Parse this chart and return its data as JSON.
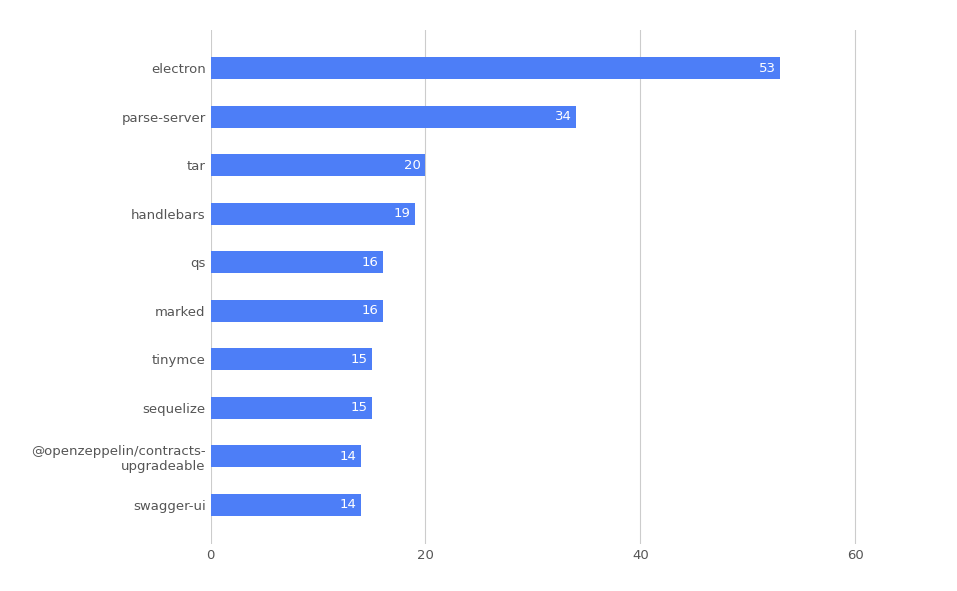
{
  "categories": [
    "swagger-ui",
    "@openzeppelin/contracts-\nupgradeable",
    "sequelize",
    "tinymce",
    "marked",
    "qs",
    "handlebars",
    "tar",
    "parse-server",
    "electron"
  ],
  "values": [
    14,
    14,
    15,
    15,
    16,
    16,
    19,
    20,
    34,
    53
  ],
  "bar_color": "#4d7ef7",
  "label_color": "#ffffff",
  "grid_color": "#cccccc",
  "background_color": "#ffffff",
  "label_fontsize": 9.5,
  "tick_fontsize": 9.5,
  "bar_height": 0.45,
  "xlim": [
    0,
    65
  ],
  "xticks": [
    0,
    20,
    40,
    60
  ],
  "figsize": [
    9.57,
    5.91
  ],
  "dpi": 100
}
